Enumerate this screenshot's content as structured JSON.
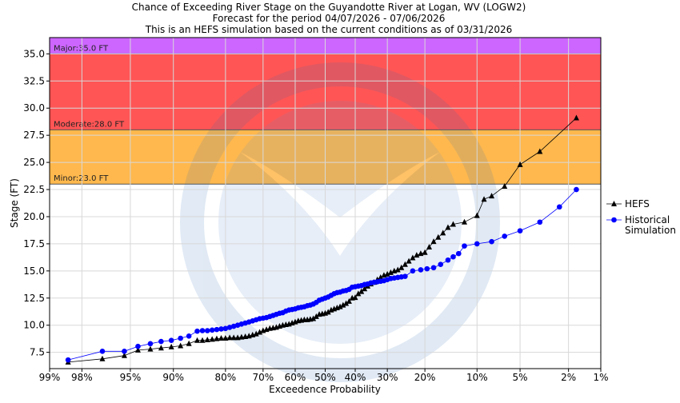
{
  "chart_data": {
    "type": "scatter",
    "title_lines": [
      "Chance of Exceeding River Stage  on the Guyandotte River at Logan, WV (LOGW2)",
      "Forecast for the period 04/07/2026 - 07/06/2026",
      "This is an HEFS simulation based on the current conditions as of 03/31/2026"
    ],
    "xlabel": "Exceedence Probability",
    "ylabel": "Stage (FT)",
    "x_scale": "normal-probability",
    "x_ticks": [
      {
        "p": 99,
        "label": "99%"
      },
      {
        "p": 98,
        "label": "98%"
      },
      {
        "p": 95,
        "label": "95%"
      },
      {
        "p": 90,
        "label": "90%"
      },
      {
        "p": 80,
        "label": "80%"
      },
      {
        "p": 70,
        "label": "70%"
      },
      {
        "p": 60,
        "label": "60%"
      },
      {
        "p": 50,
        "label": "50%"
      },
      {
        "p": 40,
        "label": "40%"
      },
      {
        "p": 30,
        "label": "30%"
      },
      {
        "p": 20,
        "label": "20%"
      },
      {
        "p": 10,
        "label": "10%"
      },
      {
        "p": 5,
        "label": "5%"
      },
      {
        "p": 2,
        "label": "2%"
      },
      {
        "p": 1,
        "label": "1%"
      }
    ],
    "ylim": [
      6.0,
      36.5
    ],
    "y_ticks": [
      7.5,
      10.0,
      12.5,
      15.0,
      17.5,
      20.0,
      22.5,
      25.0,
      27.5,
      30.0,
      32.5,
      35.0
    ],
    "y_tick_labels": [
      "7.5",
      "10.0",
      "12.5",
      "15.0",
      "17.5",
      "20.0",
      "22.5",
      "25.0",
      "27.5",
      "30.0",
      "32.5",
      "35.0"
    ],
    "grid": true,
    "flood_categories": [
      {
        "name": "Minor",
        "label": "Minor:23.0 FT",
        "stage": 23.0,
        "upper": 28.0,
        "color": "#ffb84d"
      },
      {
        "name": "Moderate",
        "label": "Moderate:28.0 FT",
        "stage": 28.0,
        "upper": 35.0,
        "color": "#ff5555"
      },
      {
        "name": "Major",
        "label": "Major:35.0 FT",
        "stage": 35.0,
        "upper": 36.5,
        "color": "#cc66ff"
      }
    ],
    "legend": {
      "placement": "right",
      "entries": [
        {
          "label_lines": [
            "HEFS"
          ],
          "color": "#000000",
          "marker": "triangle"
        },
        {
          "label_lines": [
            "Historical",
            "Simulation"
          ],
          "color": "#0000ff",
          "marker": "circle"
        }
      ]
    },
    "series": [
      {
        "name": "HEFS",
        "color": "#000000",
        "marker": "triangle",
        "points": [
          [
            98.5,
            6.6
          ],
          [
            97.0,
            6.9
          ],
          [
            95.5,
            7.2
          ],
          [
            94.3,
            7.7
          ],
          [
            93.0,
            7.8
          ],
          [
            91.7,
            7.9
          ],
          [
            90.3,
            8.0
          ],
          [
            88.9,
            8.1
          ],
          [
            87.5,
            8.3
          ],
          [
            86.0,
            8.6
          ],
          [
            85.0,
            8.6
          ],
          [
            84.0,
            8.65
          ],
          [
            83.0,
            8.7
          ],
          [
            82.0,
            8.75
          ],
          [
            81.0,
            8.8
          ],
          [
            80.0,
            8.8
          ],
          [
            79.0,
            8.85
          ],
          [
            78.0,
            8.85
          ],
          [
            77.0,
            8.85
          ],
          [
            76.0,
            8.9
          ],
          [
            75.0,
            8.95
          ],
          [
            74.0,
            9.0
          ],
          [
            73.0,
            9.1
          ],
          [
            72.0,
            9.2
          ],
          [
            71.0,
            9.35
          ],
          [
            70.0,
            9.5
          ],
          [
            69.0,
            9.6
          ],
          [
            68.0,
            9.7
          ],
          [
            67.0,
            9.75
          ],
          [
            66.0,
            9.8
          ],
          [
            65.0,
            9.9
          ],
          [
            64.0,
            10.0
          ],
          [
            63.0,
            10.05
          ],
          [
            62.0,
            10.1
          ],
          [
            61.0,
            10.2
          ],
          [
            60.0,
            10.3
          ],
          [
            59.0,
            10.4
          ],
          [
            58.0,
            10.45
          ],
          [
            57.0,
            10.5
          ],
          [
            56.0,
            10.5
          ],
          [
            55.0,
            10.55
          ],
          [
            54.0,
            10.6
          ],
          [
            53.0,
            10.8
          ],
          [
            52.0,
            11.0
          ],
          [
            51.0,
            11.05
          ],
          [
            50.0,
            11.1
          ],
          [
            49.0,
            11.2
          ],
          [
            48.0,
            11.4
          ],
          [
            47.0,
            11.5
          ],
          [
            46.0,
            11.6
          ],
          [
            45.0,
            11.7
          ],
          [
            44.0,
            11.85
          ],
          [
            43.0,
            12.0
          ],
          [
            42.0,
            12.2
          ],
          [
            41.0,
            12.5
          ],
          [
            40.0,
            12.55
          ],
          [
            39.0,
            12.9
          ],
          [
            38.0,
            13.1
          ],
          [
            37.0,
            13.35
          ],
          [
            36.0,
            13.6
          ],
          [
            35.0,
            13.8
          ],
          [
            34.0,
            13.95
          ],
          [
            33.0,
            14.2
          ],
          [
            32.0,
            14.4
          ],
          [
            31.0,
            14.6
          ],
          [
            30.0,
            14.7
          ],
          [
            29.0,
            14.85
          ],
          [
            28.0,
            15.0
          ],
          [
            27.0,
            15.1
          ],
          [
            26.0,
            15.3
          ],
          [
            25.0,
            15.6
          ],
          [
            24.0,
            15.9
          ],
          [
            23.0,
            16.2
          ],
          [
            22.0,
            16.45
          ],
          [
            21.0,
            16.6
          ],
          [
            20.0,
            16.7
          ],
          [
            19.0,
            17.2
          ],
          [
            18.0,
            17.7
          ],
          [
            17.0,
            18.1
          ],
          [
            16.0,
            18.5
          ],
          [
            15.0,
            19.0
          ],
          [
            14.0,
            19.3
          ],
          [
            12.0,
            19.5
          ],
          [
            10.0,
            20.1
          ],
          [
            9.0,
            21.6
          ],
          [
            8.0,
            21.9
          ],
          [
            6.5,
            22.8
          ],
          [
            5.0,
            24.8
          ],
          [
            3.5,
            26.0
          ],
          [
            1.7,
            29.1
          ]
        ]
      },
      {
        "name": "Historical Simulation",
        "color": "#0000ff",
        "marker": "circle",
        "points": [
          [
            98.5,
            6.8
          ],
          [
            97.0,
            7.6
          ],
          [
            95.5,
            7.6
          ],
          [
            94.3,
            8.05
          ],
          [
            93.0,
            8.3
          ],
          [
            91.7,
            8.5
          ],
          [
            90.3,
            8.6
          ],
          [
            88.9,
            8.8
          ],
          [
            87.5,
            9.0
          ],
          [
            86.0,
            9.45
          ],
          [
            85.0,
            9.5
          ],
          [
            84.0,
            9.5
          ],
          [
            83.0,
            9.55
          ],
          [
            82.0,
            9.6
          ],
          [
            81.0,
            9.65
          ],
          [
            80.0,
            9.7
          ],
          [
            79.0,
            9.8
          ],
          [
            78.0,
            9.9
          ],
          [
            77.0,
            10.0
          ],
          [
            76.0,
            10.1
          ],
          [
            75.0,
            10.2
          ],
          [
            74.0,
            10.3
          ],
          [
            73.0,
            10.4
          ],
          [
            72.0,
            10.5
          ],
          [
            71.0,
            10.6
          ],
          [
            70.0,
            10.65
          ],
          [
            69.0,
            10.7
          ],
          [
            68.0,
            10.8
          ],
          [
            67.0,
            10.9
          ],
          [
            66.0,
            11.0
          ],
          [
            65.0,
            11.1
          ],
          [
            64.0,
            11.15
          ],
          [
            63.0,
            11.3
          ],
          [
            62.0,
            11.4
          ],
          [
            61.0,
            11.45
          ],
          [
            60.0,
            11.5
          ],
          [
            59.0,
            11.6
          ],
          [
            58.0,
            11.65
          ],
          [
            57.0,
            11.7
          ],
          [
            56.0,
            11.8
          ],
          [
            55.0,
            11.85
          ],
          [
            54.0,
            11.95
          ],
          [
            53.0,
            12.1
          ],
          [
            52.0,
            12.3
          ],
          [
            51.0,
            12.4
          ],
          [
            50.0,
            12.5
          ],
          [
            49.0,
            12.6
          ],
          [
            48.0,
            12.75
          ],
          [
            47.0,
            12.9
          ],
          [
            46.0,
            13.0
          ],
          [
            45.0,
            13.05
          ],
          [
            44.0,
            13.15
          ],
          [
            43.0,
            13.2
          ],
          [
            42.0,
            13.3
          ],
          [
            41.0,
            13.5
          ],
          [
            40.0,
            13.55
          ],
          [
            39.0,
            13.6
          ],
          [
            38.0,
            13.65
          ],
          [
            37.0,
            13.75
          ],
          [
            36.0,
            13.8
          ],
          [
            35.0,
            13.9
          ],
          [
            34.0,
            13.95
          ],
          [
            33.0,
            14.0
          ],
          [
            32.0,
            14.05
          ],
          [
            31.0,
            14.1
          ],
          [
            30.0,
            14.2
          ],
          [
            29.0,
            14.3
          ],
          [
            28.0,
            14.35
          ],
          [
            27.0,
            14.4
          ],
          [
            26.0,
            14.45
          ],
          [
            25.0,
            14.5
          ],
          [
            23.0,
            15.0
          ],
          [
            21.0,
            15.1
          ],
          [
            19.5,
            15.2
          ],
          [
            18.0,
            15.3
          ],
          [
            16.5,
            15.6
          ],
          [
            15.0,
            16.0
          ],
          [
            14.0,
            16.3
          ],
          [
            13.0,
            16.6
          ],
          [
            12.0,
            17.3
          ],
          [
            10.0,
            17.5
          ],
          [
            8.0,
            17.7
          ],
          [
            6.5,
            18.2
          ],
          [
            5.0,
            18.7
          ],
          [
            3.5,
            19.5
          ],
          [
            2.4,
            20.9
          ],
          [
            1.7,
            22.5
          ]
        ]
      }
    ]
  }
}
